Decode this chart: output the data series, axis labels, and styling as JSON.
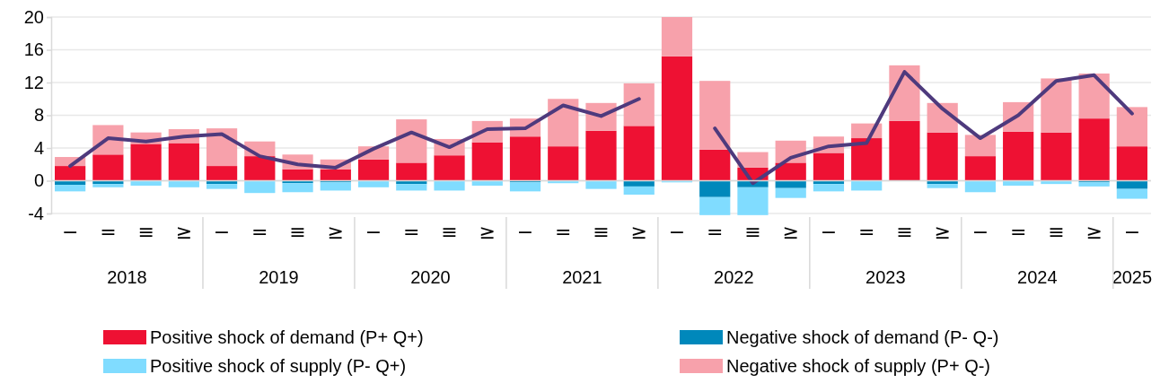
{
  "chart_data": {
    "type": "bar",
    "stacked": true,
    "categories": [
      "−",
      "=",
      "≡",
      "≥",
      "−",
      "=",
      "≡",
      "≥",
      "−",
      "=",
      "≡",
      "≥",
      "−",
      "=",
      "≡",
      "≥",
      "−",
      "=",
      "≡",
      "≥",
      "−",
      "=",
      "≡",
      "≥",
      "−",
      "=",
      "≡",
      "≥",
      "−"
    ],
    "annotations": [
      "2018",
      "2019",
      "2020",
      "2021",
      "2022",
      "2023",
      "2024",
      "2025"
    ],
    "ylim": [
      -4,
      20
    ],
    "yticks": [
      -4,
      0,
      4,
      8,
      12,
      16,
      20
    ],
    "grid": "y",
    "legend": "bottom",
    "series": [
      {
        "name": "Positive shock of demand (P+ Q+)",
        "color": "#ee1133",
        "values": [
          1.8,
          3.2,
          4.5,
          4.6,
          1.8,
          3.0,
          1.4,
          1.4,
          2.6,
          2.2,
          3.1,
          4.7,
          5.4,
          4.2,
          6.1,
          6.7,
          15.2,
          3.8,
          1.6,
          2.2,
          3.4,
          5.2,
          7.3,
          5.9,
          3.0,
          6.0,
          5.9,
          7.6,
          4.2
        ]
      },
      {
        "name": "Negative shock of demand (P- Q-)",
        "color": "#0088bb",
        "values": [
          -0.5,
          -0.4,
          0,
          0,
          -0.4,
          0,
          -0.3,
          -0.2,
          0,
          -0.4,
          0,
          0,
          -0.2,
          0,
          0,
          -0.7,
          0,
          -2.0,
          -0.8,
          -0.9,
          -0.4,
          0,
          0,
          -0.4,
          0,
          0,
          0,
          -0.2,
          -1.0
        ]
      },
      {
        "name": "Positive shock of supply (P- Q+)",
        "color": "#80dcff",
        "values": [
          -0.8,
          -0.4,
          -0.6,
          -0.8,
          -0.6,
          -1.5,
          -1.1,
          -1.0,
          -0.8,
          -0.8,
          -1.2,
          -0.6,
          -1.1,
          -0.3,
          -1.0,
          -1.0,
          -0.2,
          -2.2,
          -3.4,
          -1.2,
          -0.9,
          -1.2,
          0,
          -0.5,
          -1.4,
          -0.6,
          -0.4,
          -0.5,
          -1.2
        ]
      },
      {
        "name": "Negative shock of supply (P+ Q-)",
        "color": "#f7a1ab",
        "values": [
          1.1,
          3.6,
          1.4,
          1.7,
          4.6,
          1.8,
          1.8,
          1.2,
          1.6,
          5.3,
          2.0,
          2.6,
          2.2,
          5.8,
          3.4,
          5.2,
          4.8,
          8.4,
          1.9,
          2.7,
          2.0,
          1.8,
          6.8,
          3.6,
          2.6,
          3.6,
          6.6,
          5.5,
          4.8
        ]
      },
      {
        "type": "line",
        "color": "#4e3a7d",
        "values": [
          1.8,
          5.2,
          4.8,
          5.4,
          5.7,
          3.0,
          2.0,
          1.6,
          3.9,
          5.9,
          4.1,
          6.3,
          6.4,
          9.2,
          7.9,
          10.0,
          null,
          6.4,
          -0.3,
          2.8,
          4.2,
          4.6,
          13.3,
          8.8,
          5.2,
          8.0,
          12.2,
          12.9,
          8.2
        ]
      }
    ]
  }
}
